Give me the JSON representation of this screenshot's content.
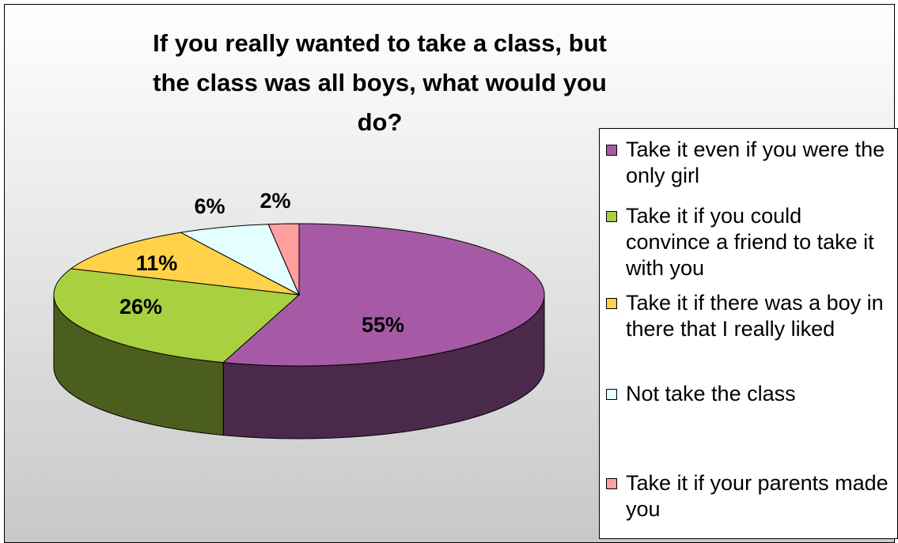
{
  "chart_data": {
    "type": "pie",
    "title": "If you really wanted to take a class, but the class was all boys, what would you do?",
    "categories": [
      "Take it even if you were the only girl",
      "Take it if you could convince a friend to take it with you",
      "Take it if there was a boy in there that I really liked",
      "Not take the class",
      "Take it if your parents made you"
    ],
    "values": [
      55,
      26,
      11,
      6,
      2
    ],
    "value_labels": [
      "55%",
      "26%",
      "11%",
      "6%",
      "2%"
    ],
    "colors": [
      "#a65aa6",
      "#a8d040",
      "#ffd24a",
      "#e4ffff",
      "#ff9f9f"
    ],
    "legend": "right"
  }
}
